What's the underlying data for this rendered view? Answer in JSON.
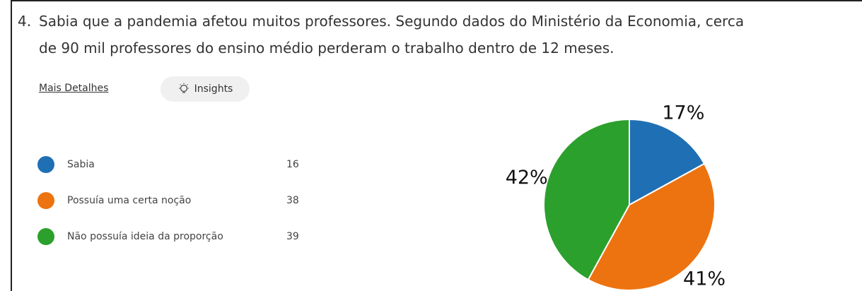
{
  "question": {
    "number": "4.",
    "lines": [
      "Sabia que a pandemia afetou muitos professores. Segundo dados do Ministério da Economia, cerca",
      "de 90 mil professores do ensino médio perderam o trabalho dentro de 12 meses."
    ]
  },
  "links": {
    "details": "Mais Detalhes",
    "insights": "Insights"
  },
  "chart_data": {
    "type": "pie",
    "categories": [
      "Sabia",
      "Possuía uma certa noção",
      "Não possuía ideia da proporção"
    ],
    "counts": [
      16,
      38,
      39
    ],
    "values": [
      17,
      41,
      42
    ],
    "value_labels": [
      "17%",
      "41%",
      "42%"
    ],
    "colors": [
      "#1f6fb4",
      "#ed7310",
      "#2ca02c"
    ]
  }
}
